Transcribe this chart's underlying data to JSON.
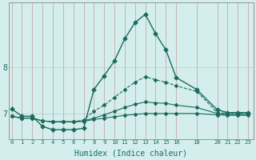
{
  "title": "",
  "xlabel": "Humidex (Indice chaleur)",
  "background_color": "#d4eeed",
  "grid_h_color": "#b8d8d5",
  "grid_v_color": "#c8b4b4",
  "line_color": "#1a6b5e",
  "x_ticks": [
    0,
    1,
    2,
    3,
    4,
    5,
    6,
    7,
    8,
    9,
    10,
    11,
    12,
    13,
    14,
    15,
    16,
    18,
    20,
    21,
    22,
    23
  ],
  "xlim": [
    -0.3,
    23.5
  ],
  "ylim": [
    6.45,
    9.4
  ],
  "y_ticks": [
    7,
    8
  ],
  "series": [
    {
      "x": [
        0,
        1,
        2,
        3,
        4,
        5,
        6,
        7,
        8,
        9,
        10,
        11,
        12,
        13,
        14,
        15,
        16,
        18,
        20,
        21,
        22,
        23
      ],
      "y": [
        7.1,
        6.94,
        6.94,
        6.72,
        6.65,
        6.65,
        6.65,
        6.68,
        7.52,
        7.82,
        8.14,
        8.62,
        8.97,
        9.15,
        8.73,
        8.38,
        7.78,
        7.52,
        7.08,
        7.02,
        7.02,
        7.02
      ],
      "style": "-",
      "marker": "D",
      "markersize": 2.5,
      "linewidth": 1.0
    },
    {
      "x": [
        0,
        1,
        2,
        3,
        4,
        5,
        6,
        7,
        8,
        9,
        10,
        11,
        12,
        13,
        14,
        15,
        16,
        18,
        20,
        21,
        22,
        23
      ],
      "y": [
        6.94,
        6.9,
        6.9,
        6.84,
        6.82,
        6.82,
        6.82,
        6.86,
        7.05,
        7.18,
        7.35,
        7.52,
        7.68,
        7.8,
        7.73,
        7.68,
        7.6,
        7.48,
        7.02,
        7.0,
        7.0,
        7.0
      ],
      "style": "--",
      "marker": "D",
      "markersize": 2.0,
      "linewidth": 0.8
    },
    {
      "x": [
        0,
        1,
        2,
        3,
        4,
        5,
        6,
        7,
        8,
        9,
        10,
        11,
        12,
        13,
        14,
        15,
        16,
        18,
        20,
        21,
        22,
        23
      ],
      "y": [
        6.94,
        6.9,
        6.9,
        6.84,
        6.82,
        6.82,
        6.82,
        6.84,
        6.9,
        6.97,
        7.05,
        7.13,
        7.2,
        7.25,
        7.23,
        7.22,
        7.18,
        7.13,
        7.0,
        6.98,
        6.98,
        6.98
      ],
      "style": "-",
      "marker": "D",
      "markersize": 2.0,
      "linewidth": 0.8
    },
    {
      "x": [
        0,
        1,
        2,
        3,
        4,
        5,
        6,
        7,
        8,
        9,
        10,
        11,
        12,
        13,
        14,
        15,
        16,
        18,
        20,
        21,
        22,
        23
      ],
      "y": [
        6.94,
        6.9,
        6.9,
        6.84,
        6.82,
        6.82,
        6.82,
        6.83,
        6.87,
        6.9,
        6.93,
        6.96,
        6.98,
        7.0,
        7.0,
        7.0,
        7.0,
        7.0,
        6.97,
        6.96,
        6.96,
        6.96
      ],
      "style": "-",
      "marker": "D",
      "markersize": 2.0,
      "linewidth": 0.8
    }
  ]
}
